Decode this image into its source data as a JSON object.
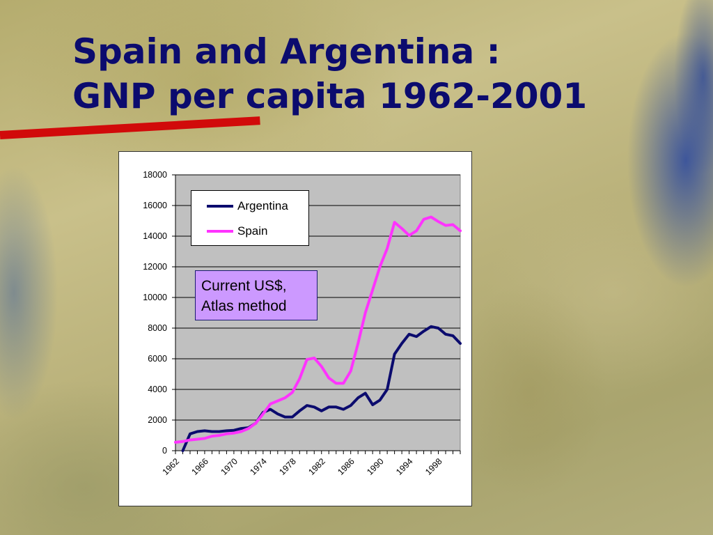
{
  "slide": {
    "title_line1": "Spain and Argentina :",
    "title_line2": "GNP per capita 1962-2001",
    "accent_color": "#d10a0a",
    "title_color": "#0b0b6e"
  },
  "chart_data": {
    "type": "line",
    "title": "",
    "xlabel": "",
    "ylabel": "",
    "ylim": [
      0,
      18000
    ],
    "y_ticks": [
      "0",
      "2000",
      "4000",
      "6000",
      "8000",
      "10000",
      "12000",
      "14000",
      "16000",
      "18000"
    ],
    "x_tick_labels": [
      "1962",
      "1966",
      "1970",
      "1974",
      "1978",
      "1982",
      "1986",
      "1990",
      "1994",
      "1998"
    ],
    "x": [
      1962,
      1963,
      1964,
      1965,
      1966,
      1967,
      1968,
      1969,
      1970,
      1971,
      1972,
      1973,
      1974,
      1975,
      1976,
      1977,
      1978,
      1979,
      1980,
      1981,
      1982,
      1983,
      1984,
      1985,
      1986,
      1987,
      1988,
      1989,
      1990,
      1991,
      1992,
      1993,
      1994,
      1995,
      1996,
      1997,
      1998,
      1999,
      2000,
      2001
    ],
    "grid": true,
    "plot_background": "#c0c0c0",
    "legend_position": "top-left",
    "series": [
      {
        "name": "Argentina",
        "color": "#0b0b6e",
        "values": [
          0,
          0,
          1100,
          1250,
          1300,
          1250,
          1250,
          1300,
          1330,
          1450,
          1500,
          1800,
          2500,
          2700,
          2400,
          2200,
          2200,
          2600,
          2950,
          2850,
          2600,
          2850,
          2850,
          2700,
          2950,
          3450,
          3750,
          3000,
          3300,
          4000,
          6300,
          7000,
          7600,
          7450,
          7800,
          8100,
          8000,
          7600,
          7500,
          7000
        ],
        "visible_from_index": 1
      },
      {
        "name": "Spain",
        "color": "#ff33ff",
        "values": [
          550,
          600,
          700,
          750,
          800,
          950,
          1000,
          1100,
          1150,
          1250,
          1450,
          1800,
          2400,
          3050,
          3250,
          3450,
          3800,
          4700,
          5950,
          6050,
          5500,
          4750,
          4400,
          4400,
          5200,
          7000,
          9000,
          10500,
          12000,
          13200,
          14900,
          14500,
          14050,
          14350,
          15100,
          15250,
          14950,
          14700,
          14750,
          14350
        ]
      }
    ],
    "annotation": {
      "line1": "Current US$,",
      "line2": "Atlas method"
    }
  }
}
